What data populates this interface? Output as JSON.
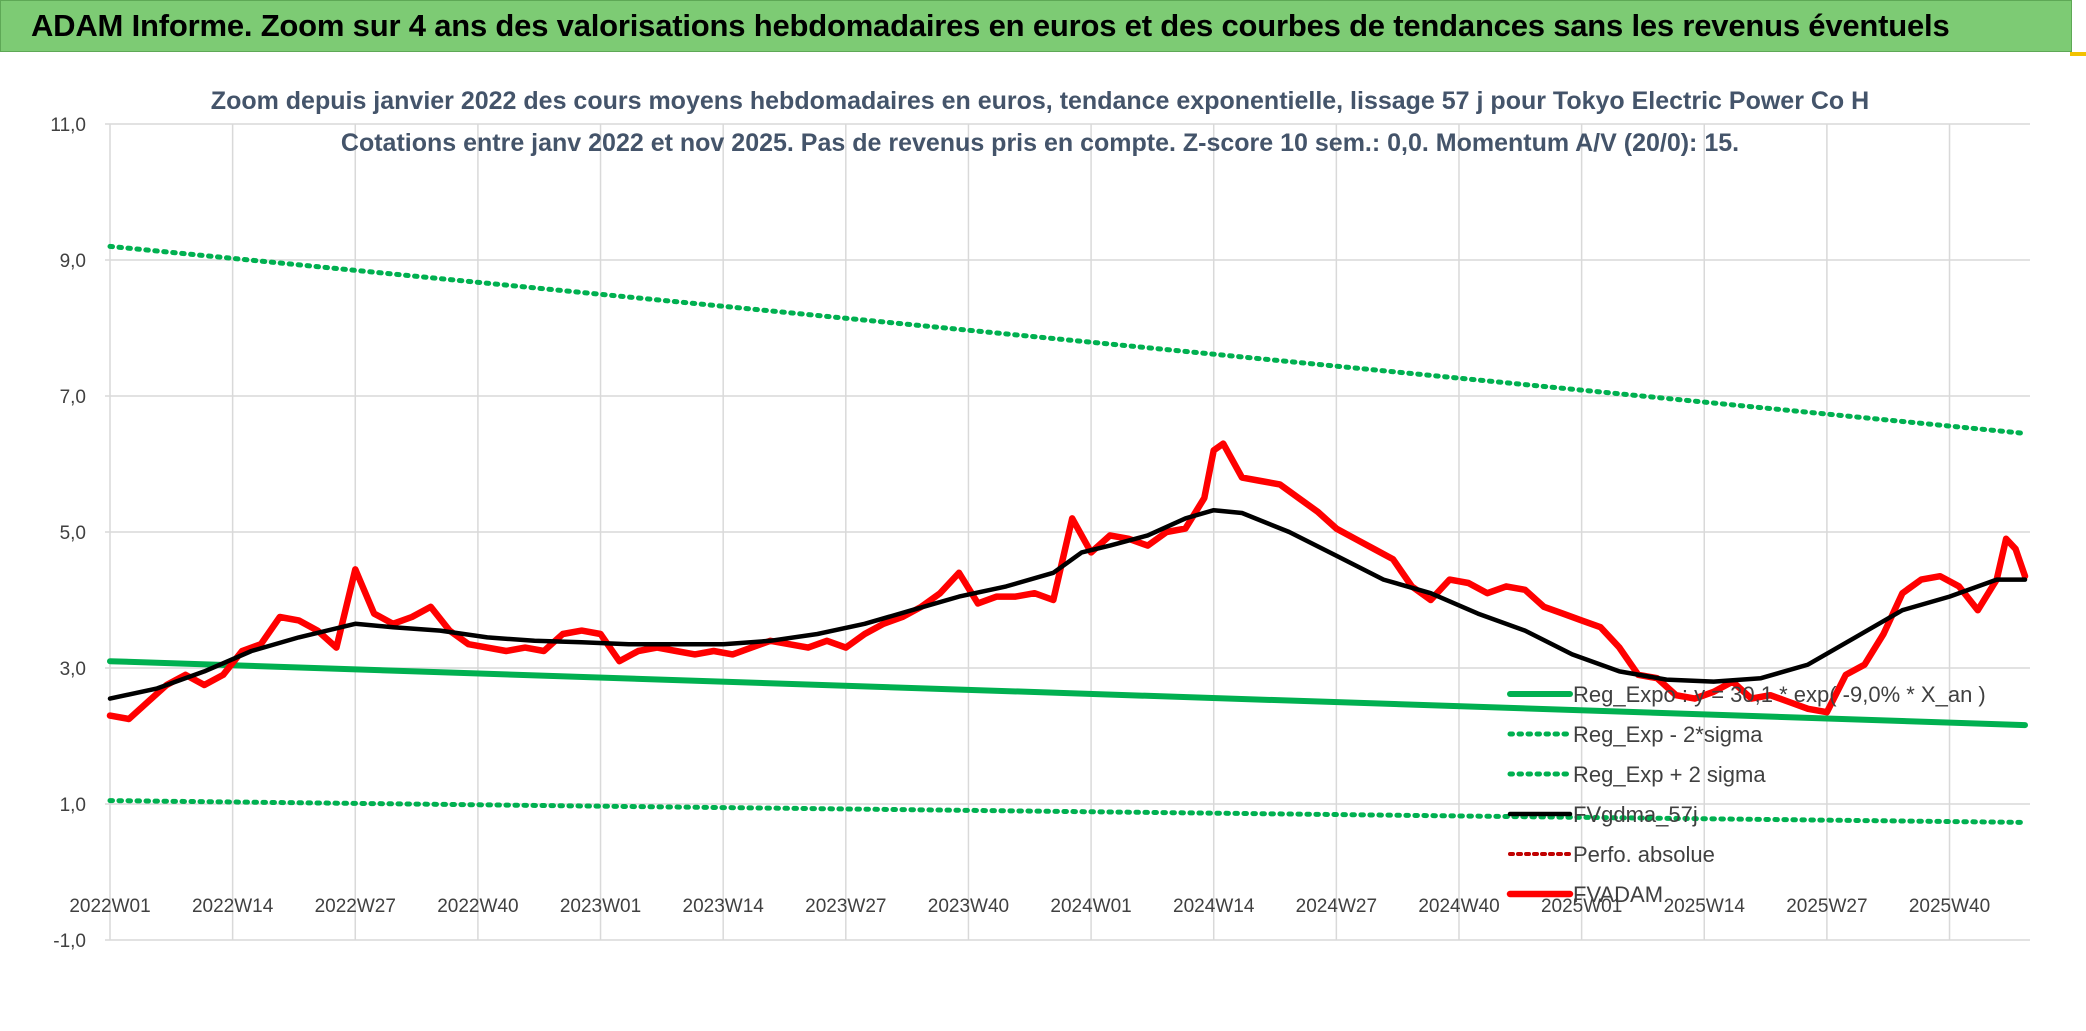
{
  "header": {
    "title": "ADAM Informe. Zoom sur 4 ans des valorisations hebdomadaires en euros et des courbes de tendances sans les revenus éventuels"
  },
  "colors": {
    "header_bg": "#7dcb74",
    "regression": "#00b050",
    "fvgdma": "#000000",
    "fvadam": "#ff0000",
    "perfo": "#c00000"
  },
  "chart_data": {
    "type": "line",
    "title": "Zoom depuis janvier 2022 des cours moyens hebdomadaires en euros, tendance exponentielle, lissage 57 j pour Tokyo Electric Power Co H",
    "subtitle": "Cotations entre janv 2022 et nov 2025. Pas de revenus pris en compte. Z-score 10 sem.: 0,0. Momentum A/V (20/0): 15.",
    "xlabel": "",
    "ylabel": "",
    "ylim": [
      -1,
      11
    ],
    "yticks": [
      "-1,0",
      "1,0",
      "3,0",
      "5,0",
      "7,0",
      "9,0",
      "11,0"
    ],
    "xlim": [
      0,
      203
    ],
    "xtick_positions": [
      0,
      13,
      26,
      39,
      52,
      65,
      78,
      91,
      104,
      117,
      130,
      143,
      156,
      169,
      182,
      195
    ],
    "xtick_labels": [
      "2022W01",
      "2022W14",
      "2022W27",
      "2022W40",
      "2023W01",
      "2023W14",
      "2023W27",
      "2023W40",
      "2024W01",
      "2024W14",
      "2024W27",
      "2024W40",
      "2025W01",
      "2025W14",
      "2025W27",
      "2025W40"
    ],
    "grid": true,
    "legend_position": "bottom-right",
    "series": [
      {
        "name": "Reg_Expo : y = 30,1 * exp( -9,0% *  X_an )",
        "style": "solid-thick",
        "x": [
          0,
          203
        ],
        "values": [
          3.1,
          2.16
        ]
      },
      {
        "name": "Reg_Exp - 2*sigma",
        "style": "dotted",
        "x": [
          0,
          203
        ],
        "values": [
          1.05,
          0.73
        ]
      },
      {
        "name": "Reg_Exp + 2 sigma",
        "style": "dotted",
        "x": [
          0,
          203
        ],
        "values": [
          9.2,
          6.45
        ]
      },
      {
        "name": "FVgdma_57j",
        "style": "solid",
        "x": [
          0,
          5,
          10,
          15,
          20,
          26,
          30,
          35,
          40,
          45,
          50,
          55,
          60,
          65,
          70,
          75,
          80,
          85,
          90,
          95,
          100,
          103,
          106,
          110,
          114,
          117,
          120,
          125,
          130,
          135,
          140,
          145,
          150,
          155,
          160,
          165,
          170,
          175,
          180,
          185,
          190,
          195,
          200,
          203
        ],
        "values": [
          2.55,
          2.7,
          2.95,
          3.25,
          3.45,
          3.65,
          3.6,
          3.55,
          3.45,
          3.4,
          3.38,
          3.35,
          3.35,
          3.35,
          3.4,
          3.5,
          3.65,
          3.85,
          4.05,
          4.2,
          4.4,
          4.7,
          4.8,
          4.95,
          5.2,
          5.32,
          5.28,
          5.0,
          4.65,
          4.3,
          4.1,
          3.8,
          3.55,
          3.2,
          2.95,
          2.83,
          2.8,
          2.85,
          3.05,
          3.45,
          3.85,
          4.05,
          4.3,
          4.3
        ]
      },
      {
        "name": "Perfo. absolue",
        "style": "dotted",
        "x": [],
        "values": []
      },
      {
        "name": "FVADAM",
        "style": "solid-thick",
        "x": [
          0,
          2,
          4,
          6,
          8,
          10,
          12,
          14,
          16,
          18,
          20,
          22,
          24,
          26,
          28,
          30,
          32,
          34,
          36,
          38,
          40,
          42,
          44,
          46,
          48,
          50,
          52,
          54,
          56,
          58,
          60,
          62,
          64,
          66,
          68,
          70,
          72,
          74,
          76,
          78,
          80,
          82,
          84,
          86,
          88,
          90,
          92,
          94,
          96,
          98,
          100,
          102,
          104,
          106,
          108,
          110,
          112,
          114,
          116,
          117,
          118,
          120,
          122,
          124,
          126,
          128,
          130,
          132,
          134,
          136,
          138,
          140,
          142,
          144,
          146,
          148,
          150,
          152,
          154,
          156,
          158,
          160,
          162,
          164,
          166,
          168,
          170,
          172,
          174,
          176,
          178,
          180,
          182,
          184,
          186,
          188,
          190,
          192,
          194,
          196,
          198,
          200,
          201,
          202,
          203
        ],
        "values": [
          2.3,
          2.25,
          2.5,
          2.75,
          2.9,
          2.75,
          2.9,
          3.25,
          3.35,
          3.75,
          3.7,
          3.55,
          3.3,
          4.45,
          3.8,
          3.65,
          3.75,
          3.9,
          3.55,
          3.35,
          3.3,
          3.25,
          3.3,
          3.25,
          3.5,
          3.55,
          3.5,
          3.1,
          3.25,
          3.3,
          3.25,
          3.2,
          3.25,
          3.2,
          3.3,
          3.4,
          3.35,
          3.3,
          3.4,
          3.3,
          3.5,
          3.65,
          3.75,
          3.9,
          4.1,
          4.4,
          3.95,
          4.05,
          4.05,
          4.1,
          4.0,
          5.2,
          4.7,
          4.95,
          4.9,
          4.8,
          5.0,
          5.05,
          5.5,
          6.2,
          6.3,
          5.8,
          5.75,
          5.7,
          5.5,
          5.3,
          5.05,
          4.9,
          4.75,
          4.6,
          4.2,
          4.0,
          4.3,
          4.25,
          4.1,
          4.2,
          4.15,
          3.9,
          3.8,
          3.7,
          3.6,
          3.3,
          2.9,
          2.85,
          2.6,
          2.55,
          2.65,
          2.8,
          2.55,
          2.6,
          2.5,
          2.4,
          2.35,
          2.9,
          3.05,
          3.5,
          4.1,
          4.3,
          4.35,
          4.2,
          3.85,
          4.3,
          4.9,
          4.75,
          4.35
        ]
      }
    ]
  }
}
